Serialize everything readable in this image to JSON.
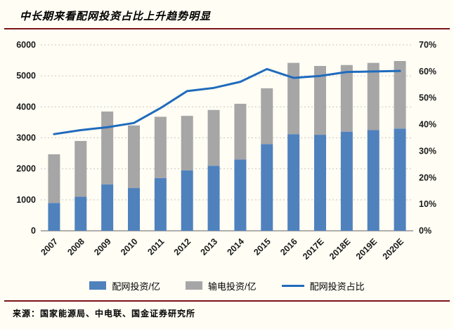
{
  "title": "中长期来看配网投资占比上升趋势明显",
  "source": "来源：国家能源局、中电联、国金证券研究所",
  "colors": {
    "rule": "#7a1516",
    "background": "#fffdf4",
    "grid": "#c8c8c8",
    "axis_line": "#7f7f7f",
    "axis_text": "#1a1a1a"
  },
  "chart_data": {
    "type": "bar+line",
    "title": "中长期来看配网投资占比上升趋势明显",
    "categories": [
      "2007",
      "2008",
      "2009",
      "2010",
      "2011",
      "2012",
      "2013",
      "2014",
      "2015",
      "2016",
      "2017E",
      "2018E",
      "2019E",
      "2020E"
    ],
    "series": [
      {
        "name": "配网投资/亿",
        "type": "bar",
        "stack": true,
        "axis": "left",
        "color": "#4f81bd",
        "values": [
          900,
          1100,
          1500,
          1380,
          1700,
          1950,
          2100,
          2300,
          2800,
          3120,
          3100,
          3200,
          3250,
          3300
        ]
      },
      {
        "name": "输电投资/亿",
        "type": "bar",
        "stack": true,
        "axis": "left",
        "color": "#a6a6a6",
        "values": [
          1570,
          1800,
          2350,
          2020,
          1980,
          1760,
          1800,
          1800,
          1800,
          2300,
          2220,
          2150,
          2170,
          2180
        ]
      },
      {
        "name": "配网投资占比",
        "type": "line",
        "axis": "right",
        "color": "#1f6bbd",
        "values": [
          36.4,
          37.9,
          39.0,
          40.6,
          46.2,
          52.6,
          53.8,
          56.1,
          60.9,
          57.6,
          58.3,
          59.8,
          60.0,
          60.2
        ]
      }
    ],
    "left_axis": {
      "min": 0,
      "max": 6000,
      "step": 1000,
      "tick_labels": [
        "0",
        "1000",
        "2000",
        "3000",
        "4000",
        "5000",
        "6000"
      ]
    },
    "right_axis": {
      "min": 0,
      "max": 70,
      "step": 10,
      "format": "percent",
      "tick_labels": [
        "0%",
        "10%",
        "20%",
        "30%",
        "40%",
        "50%",
        "60%",
        "70%"
      ]
    },
    "grid": true,
    "legend_position": "bottom"
  }
}
